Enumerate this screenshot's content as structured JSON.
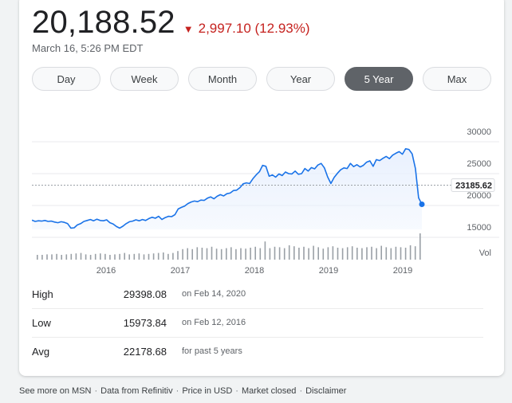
{
  "quote": {
    "price": "20,188.52",
    "change": "2,997.10 (12.93%)",
    "timestamp": "March 16, 5:26 PM EDT"
  },
  "tabs": [
    {
      "label": "Day",
      "active": false
    },
    {
      "label": "Week",
      "active": false
    },
    {
      "label": "Month",
      "active": false
    },
    {
      "label": "Year",
      "active": false
    },
    {
      "label": "5 Year",
      "active": true
    },
    {
      "label": "Max",
      "active": false
    }
  ],
  "chart_data": {
    "type": "line",
    "y_ticks": [
      "30000",
      "25000",
      "20000",
      "15000"
    ],
    "x_ticks": [
      "2016",
      "2017",
      "2018",
      "2019",
      "2019"
    ],
    "previous_close_label": "23185.62",
    "previous_close": 23185.62,
    "volume_label": "Vol",
    "ylim": [
      12500,
      31000
    ],
    "series": [
      {
        "values": [
          17700,
          17500,
          17600,
          17550,
          17650,
          17500,
          17550,
          17400,
          17300,
          17450,
          17350,
          17150,
          16450,
          16500,
          16950,
          17150,
          17500,
          17650,
          17800,
          17600,
          17850,
          17650,
          17600,
          17750,
          17300,
          17100,
          16700,
          16450,
          16750,
          17150,
          17450,
          17550,
          17750,
          17600,
          17800,
          17650,
          17950,
          18150,
          18000,
          18300,
          17800,
          18100,
          18300,
          18250,
          18550,
          19450,
          19700,
          19900,
          20300,
          20550,
          20700,
          20600,
          20850,
          20800,
          21150,
          21350,
          21050,
          21450,
          21700,
          21500,
          21850,
          21950,
          22350,
          22400,
          22800,
          23400,
          23550,
          23450,
          24200,
          24800,
          25300,
          26300,
          26150,
          24600,
          24800,
          24450,
          24950,
          24700,
          25250,
          25000,
          24950,
          25400,
          24900,
          25000,
          25800,
          25400,
          25950,
          25750,
          26350,
          26600,
          25900,
          24500,
          23450,
          24400,
          25050,
          25600,
          25900,
          25800,
          26600,
          26100,
          26400,
          26050,
          26300,
          26800,
          27000,
          26150,
          27200,
          27050,
          27400,
          27700,
          27350,
          27900,
          28200,
          28450,
          28050,
          28900,
          28800,
          28100,
          25800,
          21200,
          20188.52
        ]
      }
    ],
    "volume": [
      10,
      10,
      11,
      11,
      12,
      10,
      11,
      12,
      13,
      14,
      11,
      10,
      12,
      13,
      12,
      10,
      11,
      12,
      14,
      11,
      12,
      13,
      11,
      12,
      13,
      14,
      15,
      12,
      14,
      18,
      22,
      24,
      22,
      26,
      25,
      24,
      27,
      23,
      22,
      24,
      26,
      22,
      24,
      23,
      25,
      27,
      24,
      38,
      24,
      27,
      26,
      24,
      30,
      28,
      25,
      27,
      24,
      29,
      26,
      23,
      26,
      28,
      25,
      24,
      26,
      28,
      25,
      24,
      26,
      27,
      24,
      29,
      26,
      24,
      27,
      26,
      25,
      30,
      28,
      55
    ]
  },
  "stats": [
    {
      "label": "High",
      "value": "29398.08",
      "note": "on Feb 14, 2020"
    },
    {
      "label": "Low",
      "value": "15973.84",
      "note": "on Feb 12, 2016"
    },
    {
      "label": "Avg",
      "value": "22178.68",
      "note": "for past 5 years"
    }
  ],
  "footer": {
    "items": [
      "See more on MSN",
      "Data from Refinitiv",
      "Price in USD",
      "Market closed",
      "Disclaimer"
    ]
  },
  "colors": {
    "line": "#1a73e8",
    "negative": "#c5221f",
    "volume": "#9aa0a6"
  }
}
